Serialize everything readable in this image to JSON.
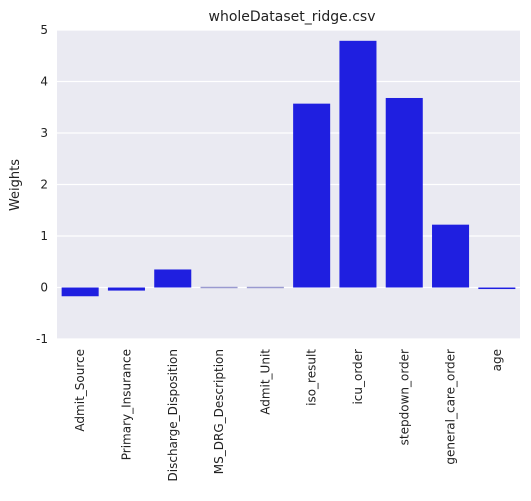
{
  "chart_data": {
    "type": "bar",
    "title": "wholeDataset_ridge.csv",
    "xlabel": "",
    "ylabel": "Weights",
    "ylim": [
      -1,
      5
    ],
    "yticks": [
      -1,
      0,
      1,
      2,
      3,
      4,
      5
    ],
    "grid": true,
    "categories": [
      "Admit_Source",
      "Primary_Insurance",
      "Discharge_Disposition",
      "MS_DRG_Description",
      "Admit_Unit",
      "iso_result",
      "icu_order",
      "stepdown_order",
      "general_care_order",
      "age"
    ],
    "values": [
      -0.17,
      -0.06,
      0.35,
      -0.01,
      -0.01,
      3.57,
      4.79,
      3.68,
      1.22,
      -0.03
    ],
    "colors": {
      "plot_background": "#eaeaf2",
      "grid": "#ffffff",
      "bar": "#1f1fe0",
      "bar_faint": "#9a9ad0"
    }
  }
}
